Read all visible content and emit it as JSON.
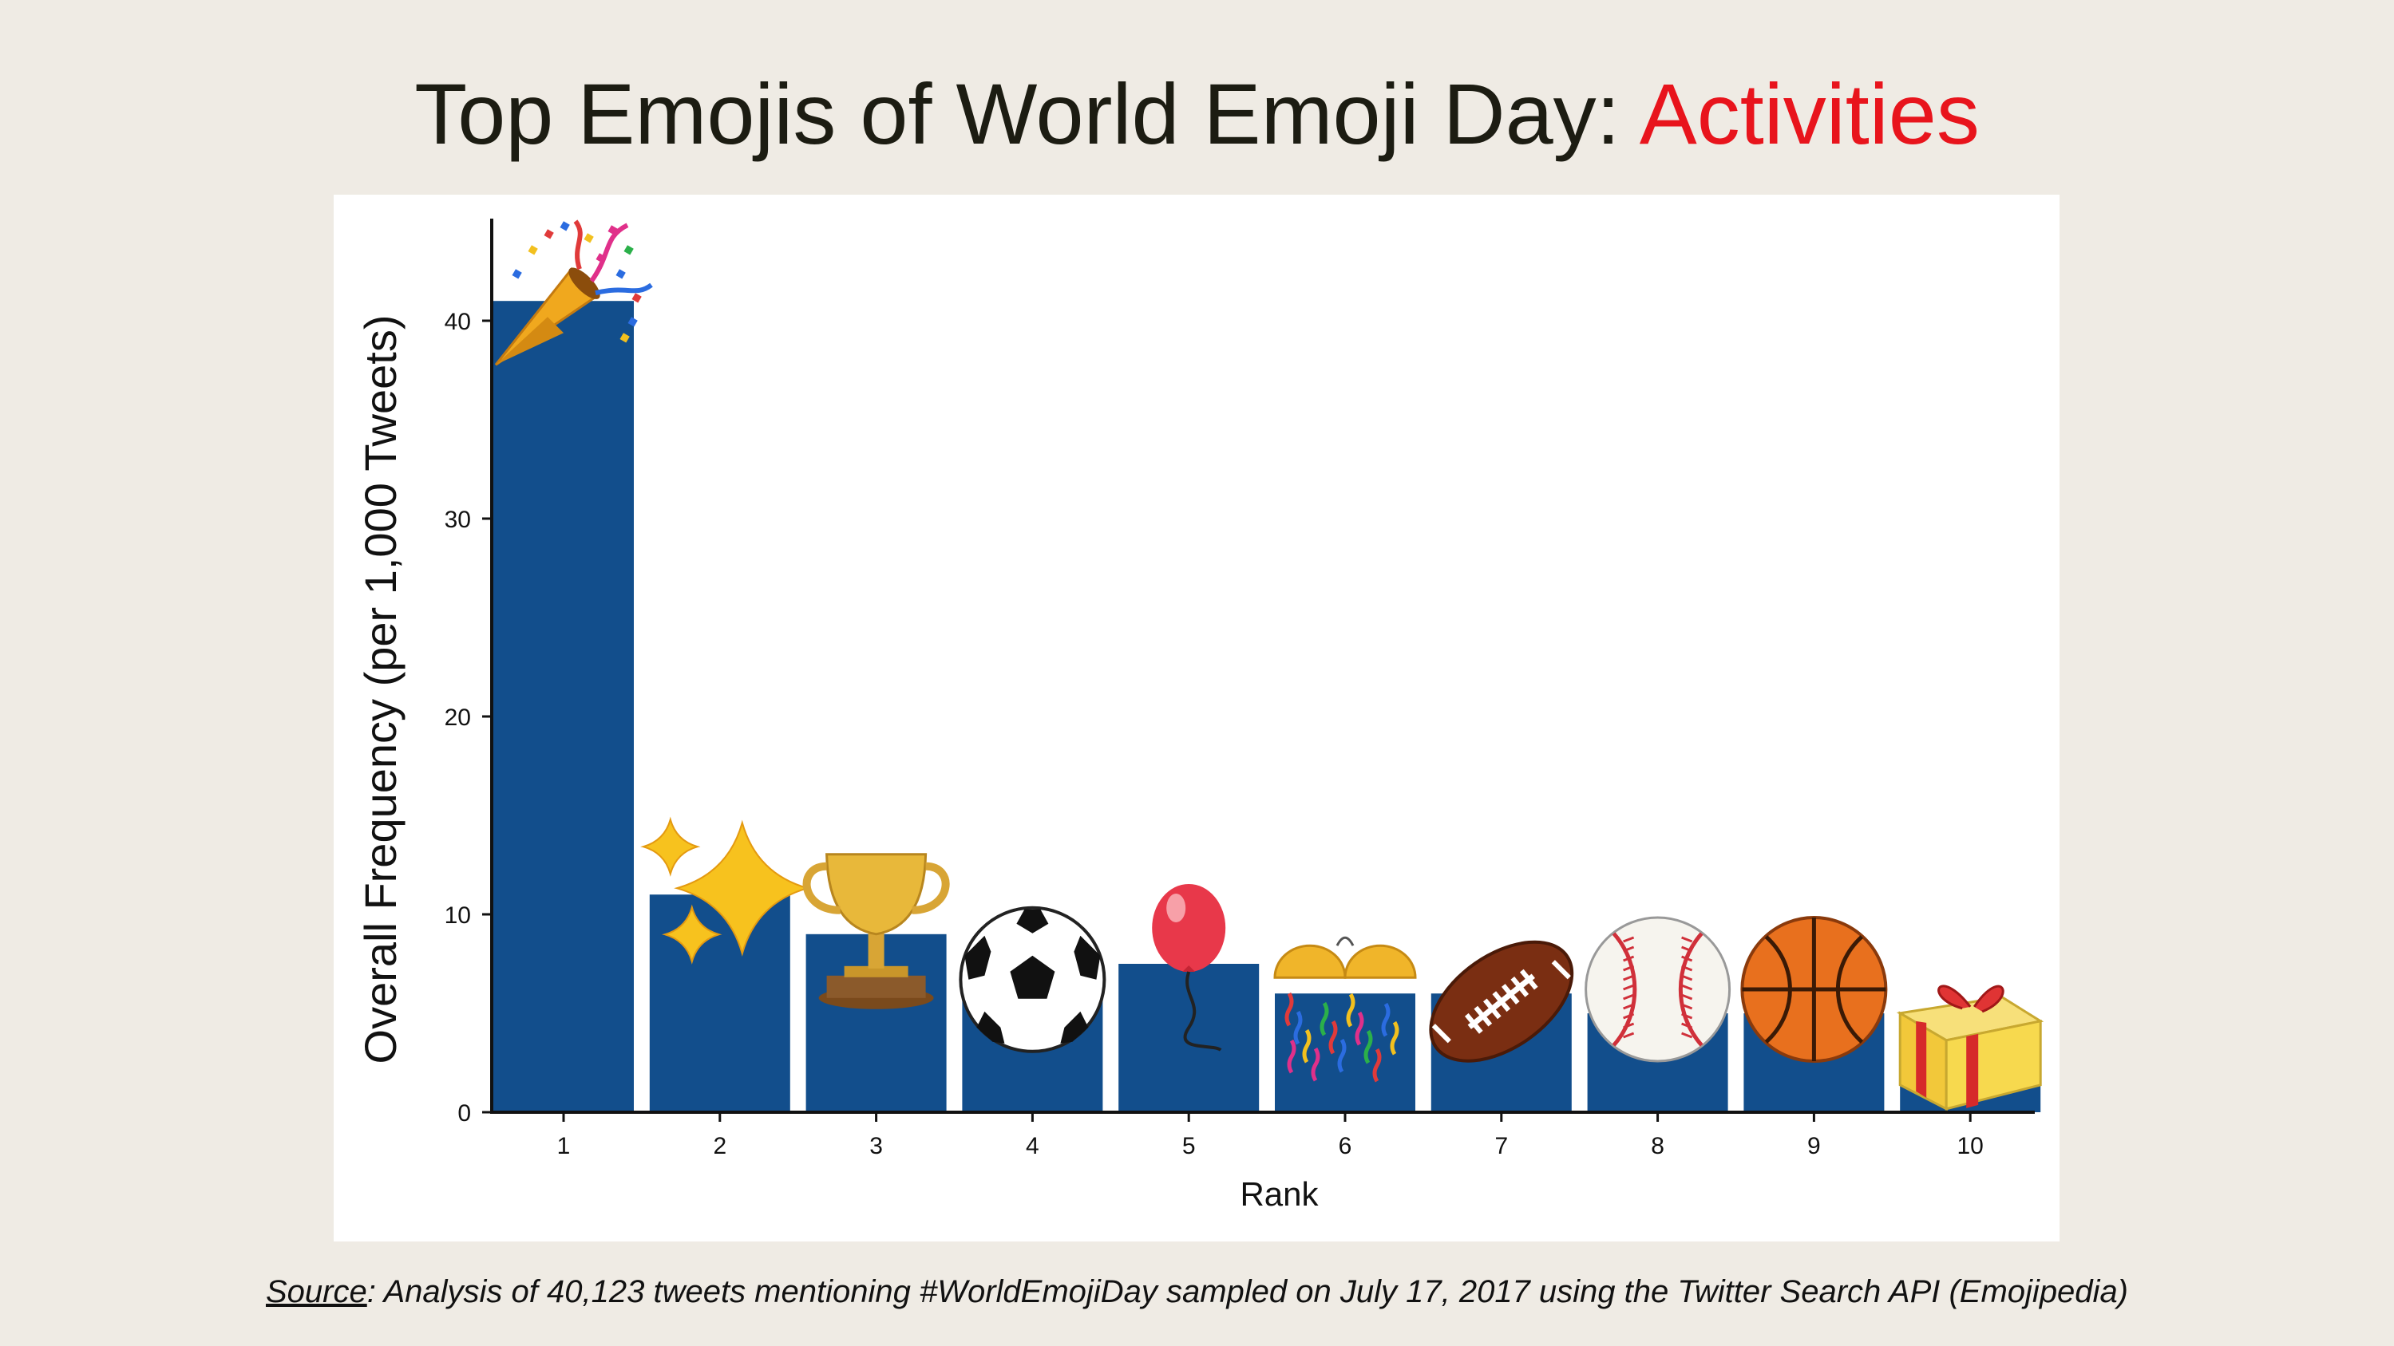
{
  "title": {
    "main": "Top Emojis of World Emoji Day: ",
    "accent": "Activities",
    "accent_color": "#e8141c"
  },
  "caption": {
    "source_label": "Source",
    "text": ": Analysis of 40,123 tweets mentioning #WorldEmojiDay sampled on July 17, 2017 using the Twitter Search API (Emojipedia)"
  },
  "colors": {
    "bar": "#124e8c",
    "background": "#efebe4",
    "panel": "#ffffff"
  },
  "chart_data": {
    "type": "bar",
    "title": "Top Emojis of World Emoji Day: Activities",
    "xlabel": "Rank",
    "ylabel": "Overall Frequency (per 1,000 Tweets)",
    "categories": [
      "1",
      "2",
      "3",
      "4",
      "5",
      "6",
      "7",
      "8",
      "9",
      "10"
    ],
    "values": [
      41,
      11,
      9,
      6.5,
      7.5,
      6,
      6,
      5,
      5,
      4.2
    ],
    "ylim": [
      0,
      45
    ],
    "yticks": [
      0,
      10,
      20,
      30,
      40
    ],
    "grid": false,
    "emojis": [
      "party-popper-icon",
      "sparkles-icon",
      "trophy-icon",
      "soccer-ball-icon",
      "balloon-icon",
      "confetti-ball-icon",
      "american-football-icon",
      "baseball-icon",
      "basketball-icon",
      "wrapped-gift-icon"
    ]
  }
}
